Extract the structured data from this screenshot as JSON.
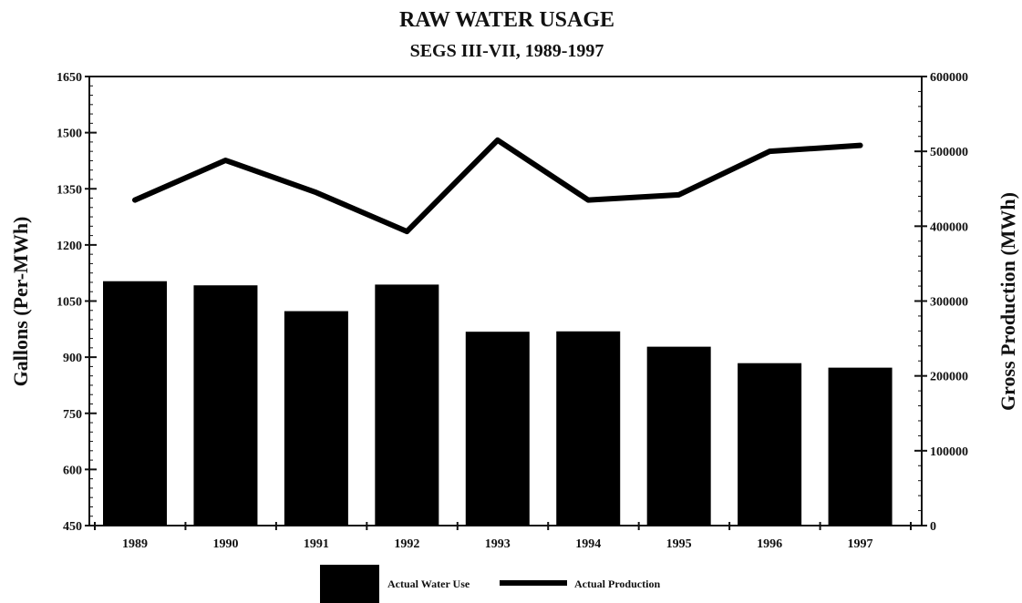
{
  "chart_data": {
    "type": "bar",
    "title": "RAW WATER USAGE",
    "subtitle": "SEGS III-VII, 1989-1997",
    "categories": [
      "1989",
      "1990",
      "1991",
      "1992",
      "1993",
      "1994",
      "1995",
      "1996",
      "1997"
    ],
    "ylabel": "Gallons (Per-MWh)",
    "y2label": "Gross Production (MWh)",
    "ylim": [
      450,
      1650
    ],
    "y2lim": [
      0,
      600000
    ],
    "yticks": [
      "450",
      "600",
      "750",
      "900",
      "1050",
      "1200",
      "1350",
      "1500",
      "1650"
    ],
    "y2ticks": [
      "0",
      "100000",
      "200000",
      "300000",
      "400000",
      "500000",
      "600000"
    ],
    "series": [
      {
        "name": "Actual Water Use",
        "type": "bar",
        "axis": "left",
        "values": [
          1103,
          1092,
          1023,
          1094,
          968,
          969,
          928,
          884,
          872
        ]
      },
      {
        "name": "Actual Production",
        "type": "line",
        "axis": "right",
        "values": [
          435000,
          488000,
          445000,
          393000,
          515000,
          435000,
          442000,
          500000,
          508000
        ]
      }
    ],
    "grid": false,
    "legend_position": "bottom",
    "colors": {
      "bar": "#000000",
      "line": "#000000",
      "axis": "#111111"
    }
  }
}
